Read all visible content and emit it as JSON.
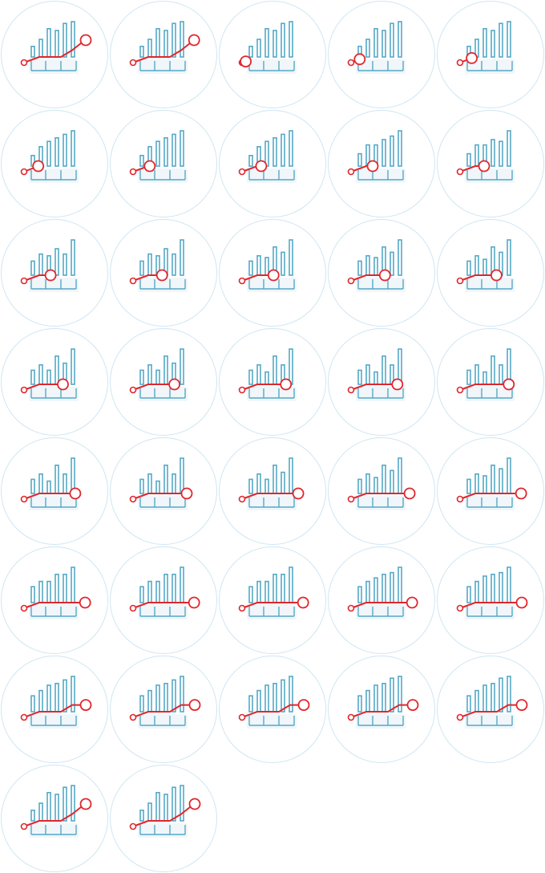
{
  "sprite_sheet": {
    "icon": "animated-growth-chart-icon",
    "frame_count": 37,
    "columns": 5,
    "colors": {
      "circle_stroke": "#cfe6f2",
      "circle_fill": "#ffffff",
      "bar": "#55a9c6",
      "baseline": "#55a9c6",
      "line": "#e0262c",
      "marker_fill": "#ffffff",
      "shadow": "#bcd6e6"
    },
    "frames": [
      {
        "bars": [
          0.3,
          0.5,
          0.8,
          0.75,
          0.95,
          1.0
        ],
        "line": [
          0.0,
          0.25,
          0.25,
          0.55,
          1.0
        ],
        "marker": 1.0
      },
      {
        "bars": [
          0.3,
          0.5,
          0.8,
          0.75,
          0.95,
          1.0
        ],
        "line": [
          0.0,
          0.25,
          0.25,
          0.55,
          1.0
        ],
        "marker": 0.99
      },
      {
        "bars": [
          0.3,
          0.5,
          0.8,
          0.75,
          0.95,
          1.0
        ],
        "line": [
          0.0,
          0.05
        ],
        "marker": 0.06
      },
      {
        "bars": [
          0.3,
          0.5,
          0.8,
          0.75,
          0.95,
          1.0
        ],
        "line": [
          0.0,
          0.15
        ],
        "marker": 0.14
      },
      {
        "bars": [
          0.3,
          0.5,
          0.8,
          0.75,
          0.95,
          1.0
        ],
        "line": [
          0.0,
          0.2
        ],
        "marker": 0.19
      },
      {
        "bars": [
          0.3,
          0.55,
          0.7,
          0.8,
          0.9,
          1.0
        ],
        "line": [
          0.0,
          0.25
        ],
        "marker": 0.23
      },
      {
        "bars": [
          0.3,
          0.55,
          0.7,
          0.8,
          0.9,
          1.0
        ],
        "line": [
          0.0,
          0.25
        ],
        "marker": 0.27
      },
      {
        "bars": [
          0.3,
          0.55,
          0.7,
          0.8,
          0.9,
          1.0
        ],
        "line": [
          0.0,
          0.25
        ],
        "marker": 0.31
      },
      {
        "bars": [
          0.35,
          0.6,
          0.6,
          0.75,
          0.85,
          1.0
        ],
        "line": [
          0.0,
          0.25
        ],
        "marker": 0.35
      },
      {
        "bars": [
          0.35,
          0.6,
          0.6,
          0.75,
          0.7,
          1.0
        ],
        "line": [
          0.0,
          0.25
        ],
        "marker": 0.39
      },
      {
        "bars": [
          0.4,
          0.6,
          0.55,
          0.75,
          0.6,
          1.0
        ],
        "line": [
          0.0,
          0.25
        ],
        "marker": 0.43
      },
      {
        "bars": [
          0.4,
          0.6,
          0.55,
          0.75,
          0.6,
          1.0
        ],
        "line": [
          0.0,
          0.25
        ],
        "marker": 0.47
      },
      {
        "bars": [
          0.4,
          0.55,
          0.5,
          0.8,
          0.65,
          1.0
        ],
        "line": [
          0.0,
          0.25
        ],
        "marker": 0.51
      },
      {
        "bars": [
          0.4,
          0.55,
          0.5,
          0.8,
          0.65,
          1.0
        ],
        "line": [
          0.0,
          0.25
        ],
        "marker": 0.55
      },
      {
        "bars": [
          0.4,
          0.55,
          0.45,
          0.8,
          0.65,
          1.0
        ],
        "line": [
          0.0,
          0.25
        ],
        "marker": 0.59
      },
      {
        "bars": [
          0.4,
          0.55,
          0.4,
          0.8,
          0.6,
          1.0
        ],
        "line": [
          0.0,
          0.25
        ],
        "marker": 0.63
      },
      {
        "bars": [
          0.4,
          0.55,
          0.4,
          0.8,
          0.6,
          1.0
        ],
        "line": [
          0.0,
          0.25
        ],
        "marker": 0.67
      },
      {
        "bars": [
          0.4,
          0.55,
          0.35,
          0.8,
          0.55,
          1.0
        ],
        "line": [
          0.0,
          0.25
        ],
        "marker": 0.71
      },
      {
        "bars": [
          0.4,
          0.55,
          0.35,
          0.8,
          0.55,
          1.0
        ],
        "line": [
          0.0,
          0.25
        ],
        "marker": 0.75
      },
      {
        "bars": [
          0.4,
          0.55,
          0.35,
          0.8,
          0.55,
          1.0
        ],
        "line": [
          0.0,
          0.25
        ],
        "marker": 0.79
      },
      {
        "bars": [
          0.4,
          0.55,
          0.35,
          0.8,
          0.55,
          1.0
        ],
        "line": [
          0.0,
          0.25
        ],
        "marker": 0.83
      },
      {
        "bars": [
          0.4,
          0.55,
          0.35,
          0.8,
          0.55,
          1.0
        ],
        "line": [
          0.0,
          0.25
        ],
        "marker": 0.87
      },
      {
        "bars": [
          0.4,
          0.55,
          0.4,
          0.8,
          0.6,
          1.0
        ],
        "line": [
          0.0,
          0.25
        ],
        "marker": 0.91
      },
      {
        "bars": [
          0.4,
          0.55,
          0.45,
          0.8,
          0.65,
          1.0
        ],
        "line": [
          0.0,
          0.25
        ],
        "marker": 0.95
      },
      {
        "bars": [
          0.4,
          0.55,
          0.5,
          0.8,
          0.7,
          1.0
        ],
        "line": [
          0.0,
          0.25
        ],
        "marker": 0.99
      },
      {
        "bars": [
          0.45,
          0.6,
          0.6,
          0.8,
          0.8,
          1.0
        ],
        "line": [
          0.0,
          0.25
        ],
        "marker": 0.99
      },
      {
        "bars": [
          0.45,
          0.6,
          0.6,
          0.8,
          0.8,
          1.0
        ],
        "line": [
          0.0,
          0.25,
          0.25
        ],
        "marker": 0.99
      },
      {
        "bars": [
          0.45,
          0.6,
          0.6,
          0.8,
          0.8,
          1.0
        ],
        "line": [
          0.0,
          0.25,
          0.25
        ],
        "marker": 0.99
      },
      {
        "bars": [
          0.45,
          0.6,
          0.7,
          0.8,
          0.85,
          1.0
        ],
        "line": [
          0.0,
          0.25,
          0.25
        ],
        "marker": 0.99
      },
      {
        "bars": [
          0.45,
          0.6,
          0.75,
          0.8,
          0.85,
          1.0
        ],
        "line": [
          0.0,
          0.25,
          0.25
        ],
        "marker": 1.0
      },
      {
        "bars": [
          0.45,
          0.6,
          0.75,
          0.8,
          0.9,
          1.0
        ],
        "line": [
          0.0,
          0.25,
          0.25,
          0.55
        ],
        "marker": 1.0
      },
      {
        "bars": [
          0.45,
          0.6,
          0.75,
          0.8,
          0.9,
          1.0
        ],
        "line": [
          0.0,
          0.25,
          0.25,
          0.55
        ],
        "marker": 1.0
      },
      {
        "bars": [
          0.45,
          0.6,
          0.75,
          0.8,
          0.9,
          1.0
        ],
        "line": [
          0.0,
          0.25,
          0.25,
          0.55
        ],
        "marker": 1.0
      },
      {
        "bars": [
          0.45,
          0.6,
          0.75,
          0.8,
          0.95,
          1.0
        ],
        "line": [
          0.0,
          0.25,
          0.25,
          0.55
        ],
        "marker": 1.0
      },
      {
        "bars": [
          0.45,
          0.6,
          0.75,
          0.8,
          0.95,
          1.0
        ],
        "line": [
          0.0,
          0.25,
          0.25,
          0.55
        ],
        "marker": 1.0
      },
      {
        "bars": [
          0.3,
          0.5,
          0.8,
          0.75,
          0.95,
          1.0
        ],
        "line": [
          0.0,
          0.25,
          0.25,
          0.55,
          1.0
        ],
        "marker": 1.0
      },
      {
        "bars": [
          0.3,
          0.5,
          0.8,
          0.75,
          0.95,
          1.0
        ],
        "line": [
          0.0,
          0.25,
          0.25,
          0.55,
          1.0
        ],
        "marker": 1.0
      }
    ]
  }
}
